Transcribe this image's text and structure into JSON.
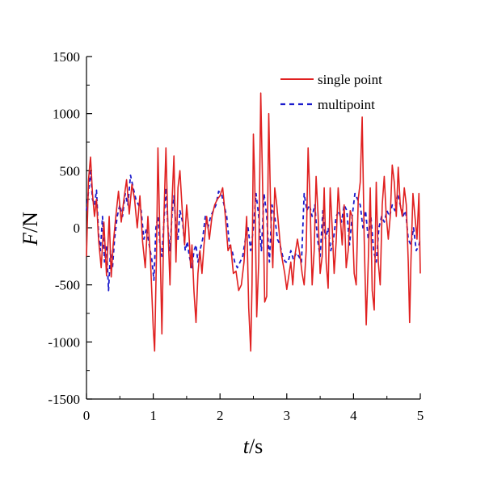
{
  "chart_data": {
    "type": "line",
    "title": "",
    "xlabel_var": "t",
    "xlabel_unit": "/s",
    "ylabel_var": "F",
    "ylabel_unit": "/N",
    "xlim": [
      0,
      5
    ],
    "ylim": [
      -1500,
      1500
    ],
    "xticks": [
      0,
      1,
      2,
      3,
      4,
      5
    ],
    "yticks": [
      -1500,
      -1000,
      -500,
      0,
      500,
      1000,
      1500
    ],
    "grid": false,
    "legend_position": "top-right",
    "series": [
      {
        "name": "single point",
        "color": "#e02020",
        "dash": "solid",
        "points": [
          [
            0.0,
            -250
          ],
          [
            0.03,
            420
          ],
          [
            0.06,
            620
          ],
          [
            0.09,
            300
          ],
          [
            0.12,
            100
          ],
          [
            0.15,
            250
          ],
          [
            0.18,
            -100
          ],
          [
            0.22,
            -350
          ],
          [
            0.26,
            50
          ],
          [
            0.3,
            -420
          ],
          [
            0.34,
            100
          ],
          [
            0.37,
            -430
          ],
          [
            0.4,
            -150
          ],
          [
            0.44,
            100
          ],
          [
            0.48,
            320
          ],
          [
            0.52,
            50
          ],
          [
            0.56,
            250
          ],
          [
            0.6,
            420
          ],
          [
            0.64,
            120
          ],
          [
            0.68,
            380
          ],
          [
            0.72,
            250
          ],
          [
            0.76,
            0
          ],
          [
            0.8,
            280
          ],
          [
            0.84,
            -120
          ],
          [
            0.88,
            -350
          ],
          [
            0.92,
            100
          ],
          [
            0.96,
            -300
          ],
          [
            1.0,
            -880
          ],
          [
            1.02,
            -1080
          ],
          [
            1.05,
            -200
          ],
          [
            1.07,
            700
          ],
          [
            1.1,
            -100
          ],
          [
            1.13,
            -930
          ],
          [
            1.16,
            100
          ],
          [
            1.19,
            700
          ],
          [
            1.22,
            0
          ],
          [
            1.25,
            -500
          ],
          [
            1.28,
            200
          ],
          [
            1.31,
            630
          ],
          [
            1.34,
            -300
          ],
          [
            1.37,
            350
          ],
          [
            1.4,
            500
          ],
          [
            1.44,
            100
          ],
          [
            1.47,
            -150
          ],
          [
            1.5,
            200
          ],
          [
            1.53,
            0
          ],
          [
            1.56,
            -350
          ],
          [
            1.58,
            -150
          ],
          [
            1.61,
            -560
          ],
          [
            1.64,
            -830
          ],
          [
            1.67,
            -400
          ],
          [
            1.7,
            -200
          ],
          [
            1.73,
            -400
          ],
          [
            1.76,
            -150
          ],
          [
            1.8,
            100
          ],
          [
            1.84,
            -100
          ],
          [
            1.88,
            100
          ],
          [
            1.92,
            200
          ],
          [
            1.96,
            250
          ],
          [
            2.0,
            280
          ],
          [
            2.04,
            350
          ],
          [
            2.08,
            100
          ],
          [
            2.12,
            -200
          ],
          [
            2.16,
            -150
          ],
          [
            2.2,
            -400
          ],
          [
            2.24,
            -380
          ],
          [
            2.28,
            -550
          ],
          [
            2.32,
            -500
          ],
          [
            2.36,
            -300
          ],
          [
            2.4,
            100
          ],
          [
            2.43,
            -700
          ],
          [
            2.46,
            -1080
          ],
          [
            2.48,
            -500
          ],
          [
            2.5,
            820
          ],
          [
            2.52,
            400
          ],
          [
            2.55,
            -780
          ],
          [
            2.58,
            -300
          ],
          [
            2.61,
            1180
          ],
          [
            2.64,
            300
          ],
          [
            2.67,
            -650
          ],
          [
            2.7,
            -600
          ],
          [
            2.73,
            1000
          ],
          [
            2.76,
            100
          ],
          [
            2.79,
            -350
          ],
          [
            2.82,
            350
          ],
          [
            2.85,
            200
          ],
          [
            2.88,
            0
          ],
          [
            2.91,
            -200
          ],
          [
            2.94,
            -300
          ],
          [
            2.97,
            -400
          ],
          [
            3.0,
            -540
          ],
          [
            3.03,
            -420
          ],
          [
            3.06,
            -300
          ],
          [
            3.09,
            -500
          ],
          [
            3.12,
            -250
          ],
          [
            3.16,
            -100
          ],
          [
            3.2,
            -250
          ],
          [
            3.23,
            -400
          ],
          [
            3.26,
            -500
          ],
          [
            3.29,
            -200
          ],
          [
            3.32,
            700
          ],
          [
            3.35,
            200
          ],
          [
            3.38,
            -500
          ],
          [
            3.41,
            -200
          ],
          [
            3.44,
            450
          ],
          [
            3.47,
            100
          ],
          [
            3.5,
            -400
          ],
          [
            3.53,
            -250
          ],
          [
            3.56,
            350
          ],
          [
            3.59,
            -300
          ],
          [
            3.62,
            -530
          ],
          [
            3.65,
            350
          ],
          [
            3.68,
            0
          ],
          [
            3.71,
            -400
          ],
          [
            3.74,
            -120
          ],
          [
            3.77,
            350
          ],
          [
            3.8,
            100
          ],
          [
            3.83,
            -150
          ],
          [
            3.86,
            200
          ],
          [
            3.89,
            -350
          ],
          [
            3.92,
            -200
          ],
          [
            3.95,
            150
          ],
          [
            3.98,
            100
          ],
          [
            4.01,
            -400
          ],
          [
            4.04,
            -500
          ],
          [
            4.07,
            250
          ],
          [
            4.1,
            400
          ],
          [
            4.13,
            970
          ],
          [
            4.16,
            -100
          ],
          [
            4.19,
            -850
          ],
          [
            4.22,
            -300
          ],
          [
            4.25,
            350
          ],
          [
            4.28,
            -550
          ],
          [
            4.31,
            -720
          ],
          [
            4.34,
            400
          ],
          [
            4.37,
            -300
          ],
          [
            4.4,
            -500
          ],
          [
            4.43,
            200
          ],
          [
            4.46,
            450
          ],
          [
            4.49,
            100
          ],
          [
            4.52,
            -100
          ],
          [
            4.55,
            100
          ],
          [
            4.58,
            550
          ],
          [
            4.61,
            400
          ],
          [
            4.64,
            100
          ],
          [
            4.67,
            530
          ],
          [
            4.7,
            200
          ],
          [
            4.73,
            100
          ],
          [
            4.76,
            350
          ],
          [
            4.79,
            200
          ],
          [
            4.82,
            -300
          ],
          [
            4.84,
            -830
          ],
          [
            4.86,
            -300
          ],
          [
            4.89,
            300
          ],
          [
            4.92,
            100
          ],
          [
            4.95,
            -100
          ],
          [
            4.98,
            300
          ],
          [
            5.0,
            -400
          ]
        ]
      },
      {
        "name": "multipoint",
        "color": "#1a1acc",
        "dash": "dashed",
        "points": [
          [
            0.0,
            150
          ],
          [
            0.03,
            320
          ],
          [
            0.06,
            490
          ],
          [
            0.09,
            250
          ],
          [
            0.12,
            200
          ],
          [
            0.15,
            330
          ],
          [
            0.18,
            -50
          ],
          [
            0.21,
            -200
          ],
          [
            0.24,
            100
          ],
          [
            0.27,
            -300
          ],
          [
            0.3,
            -150
          ],
          [
            0.33,
            -550
          ],
          [
            0.36,
            -200
          ],
          [
            0.39,
            -350
          ],
          [
            0.42,
            -100
          ],
          [
            0.46,
            100
          ],
          [
            0.5,
            200
          ],
          [
            0.54,
            100
          ],
          [
            0.58,
            300
          ],
          [
            0.62,
            200
          ],
          [
            0.66,
            460
          ],
          [
            0.7,
            350
          ],
          [
            0.74,
            250
          ],
          [
            0.78,
            200
          ],
          [
            0.82,
            150
          ],
          [
            0.86,
            -100
          ],
          [
            0.9,
            0
          ],
          [
            0.94,
            -150
          ],
          [
            0.98,
            -280
          ],
          [
            1.01,
            -460
          ],
          [
            1.04,
            0
          ],
          [
            1.07,
            100
          ],
          [
            1.1,
            -150
          ],
          [
            1.13,
            -250
          ],
          [
            1.16,
            50
          ],
          [
            1.19,
            350
          ],
          [
            1.22,
            0
          ],
          [
            1.25,
            -200
          ],
          [
            1.28,
            100
          ],
          [
            1.31,
            280
          ],
          [
            1.34,
            0
          ],
          [
            1.37,
            -100
          ],
          [
            1.4,
            150
          ],
          [
            1.44,
            50
          ],
          [
            1.48,
            -200
          ],
          [
            1.51,
            -120
          ],
          [
            1.54,
            -250
          ],
          [
            1.58,
            -350
          ],
          [
            1.61,
            -200
          ],
          [
            1.64,
            -150
          ],
          [
            1.67,
            -300
          ],
          [
            1.7,
            -200
          ],
          [
            1.74,
            -100
          ],
          [
            1.78,
            100
          ],
          [
            1.82,
            0
          ],
          [
            1.86,
            100
          ],
          [
            1.9,
            150
          ],
          [
            1.94,
            200
          ],
          [
            1.98,
            320
          ],
          [
            2.02,
            300
          ],
          [
            2.06,
            200
          ],
          [
            2.1,
            100
          ],
          [
            2.14,
            -150
          ],
          [
            2.18,
            -200
          ],
          [
            2.22,
            -300
          ],
          [
            2.26,
            -350
          ],
          [
            2.3,
            -300
          ],
          [
            2.34,
            -250
          ],
          [
            2.38,
            -100
          ],
          [
            2.42,
            0
          ],
          [
            2.46,
            -200
          ],
          [
            2.5,
            0
          ],
          [
            2.54,
            300
          ],
          [
            2.58,
            100
          ],
          [
            2.62,
            -200
          ],
          [
            2.66,
            300
          ],
          [
            2.7,
            100
          ],
          [
            2.74,
            -300
          ],
          [
            2.78,
            200
          ],
          [
            2.82,
            100
          ],
          [
            2.86,
            -100
          ],
          [
            2.9,
            -150
          ],
          [
            2.94,
            -250
          ],
          [
            2.98,
            -300
          ],
          [
            3.02,
            -300
          ],
          [
            3.06,
            -200
          ],
          [
            3.1,
            -280
          ],
          [
            3.14,
            -220
          ],
          [
            3.18,
            -250
          ],
          [
            3.22,
            -300
          ],
          [
            3.26,
            300
          ],
          [
            3.3,
            150
          ],
          [
            3.34,
            200
          ],
          [
            3.38,
            100
          ],
          [
            3.42,
            200
          ],
          [
            3.46,
            -100
          ],
          [
            3.5,
            -250
          ],
          [
            3.54,
            150
          ],
          [
            3.58,
            -100
          ],
          [
            3.62,
            0
          ],
          [
            3.66,
            -200
          ],
          [
            3.7,
            -100
          ],
          [
            3.74,
            100
          ],
          [
            3.78,
            150
          ],
          [
            3.82,
            50
          ],
          [
            3.86,
            200
          ],
          [
            3.9,
            150
          ],
          [
            3.94,
            -150
          ],
          [
            3.98,
            100
          ],
          [
            4.02,
            300
          ],
          [
            4.06,
            250
          ],
          [
            4.1,
            200
          ],
          [
            4.14,
            0
          ],
          [
            4.18,
            150
          ],
          [
            4.22,
            -100
          ],
          [
            4.26,
            100
          ],
          [
            4.3,
            -200
          ],
          [
            4.34,
            -300
          ],
          [
            4.38,
            0
          ],
          [
            4.42,
            100
          ],
          [
            4.46,
            50
          ],
          [
            4.5,
            150
          ],
          [
            4.54,
            100
          ],
          [
            4.58,
            200
          ],
          [
            4.62,
            150
          ],
          [
            4.66,
            300
          ],
          [
            4.7,
            200
          ],
          [
            4.74,
            100
          ],
          [
            4.78,
            150
          ],
          [
            4.82,
            -100
          ],
          [
            4.86,
            -150
          ],
          [
            4.9,
            0
          ],
          [
            4.94,
            -200
          ],
          [
            4.98,
            -150
          ],
          [
            5.0,
            -100
          ]
        ]
      }
    ]
  }
}
